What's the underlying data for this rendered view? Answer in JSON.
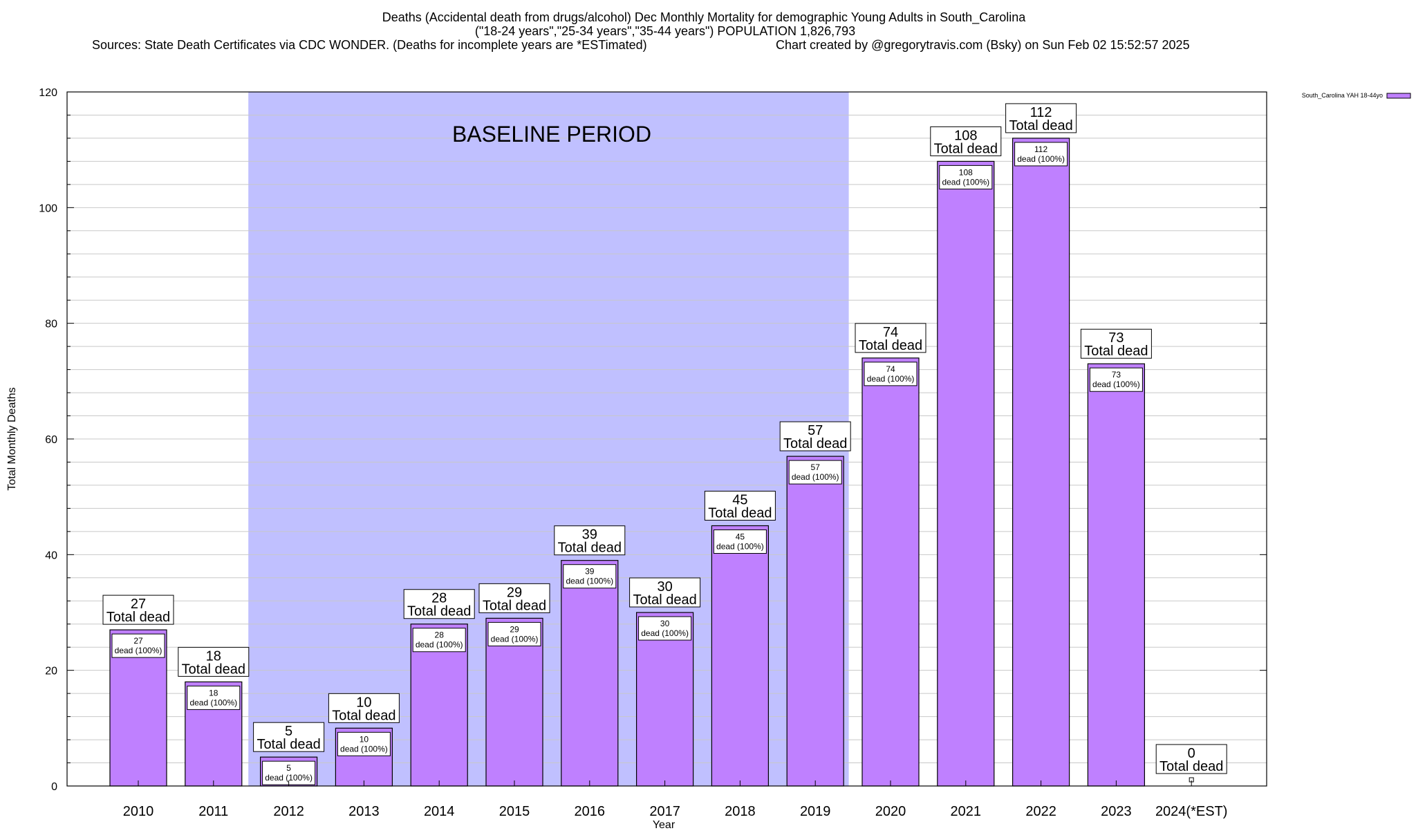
{
  "chart_data": {
    "type": "bar",
    "title_lines": [
      "Deaths (Accidental death from drugs/alcohol) Dec Monthly Mortality for demographic Young Adults in South_Carolina",
      "(\"18-24 years\",\"25-34 years\",\"35-44 years\") POPULATION 1,826,793"
    ],
    "sources_text": "Sources: State Death Certificates via CDC WONDER. (Deaths for incomplete years are *ESTimated)",
    "credit_text": "Chart created by @gregorytravis.com (Bsky) on Sun Feb 02 15:52:57 2025",
    "xlabel": "Year",
    "ylabel": "Total Monthly Deaths",
    "ylim": [
      0,
      120
    ],
    "y_major_ticks": [
      0,
      20,
      40,
      60,
      80,
      100,
      120
    ],
    "y_minor_step": 4,
    "grid": true,
    "legend": {
      "position": "top-right",
      "entries": [
        {
          "name": "South_Carolina YAH 18-44yo",
          "color": "#bf80ff"
        }
      ]
    },
    "categories": [
      "2010",
      "2011",
      "2012",
      "2013",
      "2014",
      "2015",
      "2016",
      "2017",
      "2018",
      "2019",
      "2020",
      "2021",
      "2022",
      "2023",
      "2024(*EST)"
    ],
    "series": [
      {
        "name": "South_Carolina YAH 18-44yo",
        "values": [
          27,
          18,
          5,
          10,
          28,
          29,
          39,
          30,
          45,
          57,
          74,
          108,
          112,
          73,
          0
        ],
        "color": "#bf80ff"
      }
    ],
    "top_label_suffix": "Total dead",
    "inner_label_suffix": "dead (100%)",
    "baseline": {
      "label": "BASELINE PERIOD",
      "start": "2012",
      "end": "2019",
      "color": "#c0c0ff"
    },
    "colors": {
      "bar_fill": "#bf80ff",
      "bar_stroke": "#000000",
      "baseline_fill": "#c0c0ff",
      "grid": "#c8c8c8"
    }
  }
}
